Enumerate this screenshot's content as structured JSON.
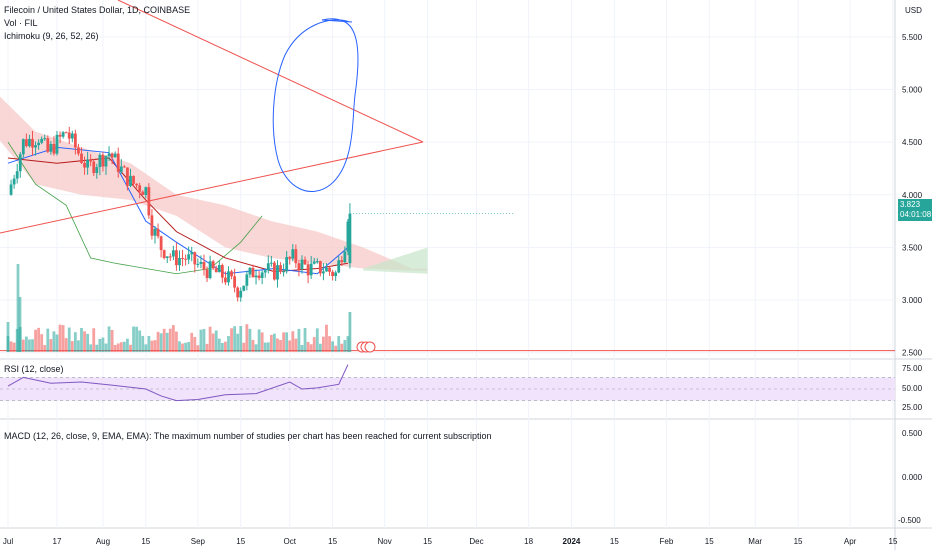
{
  "header": {
    "symbol_line": "Filecoin / United States Dollar, 1D, COINBASE",
    "volume_line": "Vol · FIL",
    "ichimoku_line": "Ichimoku (9, 26, 52, 26)",
    "currency": "USD"
  },
  "last_price": {
    "value": "3.823",
    "countdown": "04:01:08"
  },
  "rsi_panel": {
    "title": "RSI (12, close)",
    "ticks": [
      "75.00",
      "50.00",
      "25.00"
    ]
  },
  "macd_panel": {
    "title": "MACD (12, 26, close, 9, EMA, EMA): The maximum number of studies per chart has been reached for current subscription",
    "ticks": [
      "0.500",
      "0.000",
      "-0.500"
    ]
  },
  "colors": {
    "up": "#26a69a",
    "down": "#ef5350",
    "cloud_bear": "#f7c6c6",
    "cloud_bull": "#c8e6c9",
    "rsi_band": "#f1e3fb",
    "rsi_line": "#7e57c2",
    "trend_line": "#ef5350",
    "drawing": "#2962ff",
    "base_line": "#b71c1c",
    "conversion_line": "#2962ff",
    "lagging_span": "#43a047"
  },
  "chart_data": [
    {
      "type": "candlestick",
      "title": "Filecoin / United States Dollar, 1D, COINBASE",
      "y_axis_ticks": [
        5.5,
        5.0,
        4.5,
        4.0,
        3.5,
        3.0,
        2.5
      ],
      "y_axis_labels": [
        "5.500",
        "5.000",
        "4.500",
        "4.000",
        "3.500",
        "3.000",
        "2.500"
      ],
      "ylim": [
        2.45,
        5.85
      ],
      "x_axis_labels": [
        "Jul",
        "17",
        "Aug",
        "15",
        "Sep",
        "15",
        "Oct",
        "15",
        "Nov",
        "15",
        "Dec",
        "18",
        "2024",
        "15",
        "Feb",
        "15",
        "Mar",
        "15",
        "Apr",
        "15"
      ],
      "x_axis_dates": [
        "2023-07-01",
        "2023-07-17",
        "2023-08-01",
        "2023-08-15",
        "2023-09-01",
        "2023-09-15",
        "2023-10-01",
        "2023-10-15",
        "2023-11-01",
        "2023-11-15",
        "2023-12-01",
        "2023-12-18",
        "2024-01-01",
        "2024-01-15",
        "2024-02-01",
        "2024-02-15",
        "2024-03-01",
        "2024-03-15",
        "2024-04-01",
        "2024-04-15"
      ],
      "series": [
        {
          "kind": "close",
          "x": [
            "2023-07-01",
            "2023-07-06",
            "2023-07-11",
            "2023-07-14",
            "2023-07-20",
            "2023-07-27",
            "2023-08-03",
            "2023-08-10",
            "2023-08-15",
            "2023-08-17",
            "2023-08-20",
            "2023-08-24",
            "2023-08-28",
            "2023-09-03",
            "2023-09-08",
            "2023-09-11",
            "2023-09-14",
            "2023-09-20",
            "2023-09-26",
            "2023-10-02",
            "2023-10-07",
            "2023-10-12",
            "2023-10-16",
            "2023-10-19",
            "2023-10-20"
          ],
          "values": [
            4.0,
            4.5,
            4.55,
            4.4,
            4.6,
            4.25,
            4.4,
            4.12,
            4.05,
            3.7,
            3.5,
            3.4,
            3.4,
            3.3,
            3.25,
            3.2,
            3.1,
            3.3,
            3.27,
            3.4,
            3.3,
            3.3,
            3.25,
            3.55,
            3.82
          ]
        },
        {
          "kind": "ichimoku-base-line",
          "x": [
            "2023-07-01",
            "2023-07-17",
            "2023-08-03",
            "2023-08-15",
            "2023-08-25",
            "2023-09-10",
            "2023-09-26",
            "2023-10-10",
            "2023-10-20"
          ],
          "values": [
            4.35,
            4.3,
            4.35,
            3.95,
            3.65,
            3.4,
            3.27,
            3.3,
            3.35
          ]
        },
        {
          "kind": "ichimoku-conversion-line",
          "x": [
            "2023-07-01",
            "2023-07-17",
            "2023-08-03",
            "2023-08-15",
            "2023-08-25",
            "2023-09-10",
            "2023-09-26",
            "2023-10-10",
            "2023-10-20"
          ],
          "values": [
            4.3,
            4.45,
            4.4,
            3.75,
            3.55,
            3.25,
            3.3,
            3.25,
            3.5
          ]
        },
        {
          "kind": "ichimoku-lagging-span",
          "x": [
            "2023-07-01",
            "2023-07-10",
            "2023-07-20",
            "2023-07-28",
            "2023-08-05",
            "2023-08-15",
            "2023-08-25",
            "2023-09-05",
            "2023-09-15",
            "2023-09-22"
          ],
          "values": [
            4.5,
            4.1,
            3.9,
            3.4,
            3.35,
            3.3,
            3.25,
            3.3,
            3.55,
            3.8
          ]
        },
        {
          "kind": "ichimoku-cloud",
          "x": [
            "2023-06-26",
            "2023-07-10",
            "2023-07-25",
            "2023-08-10",
            "2023-08-25",
            "2023-09-10",
            "2023-09-25",
            "2023-10-10",
            "2023-10-25",
            "2023-11-10",
            "2023-11-15"
          ],
          "span_a": [
            5.0,
            4.6,
            4.45,
            4.3,
            4.0,
            3.9,
            3.75,
            3.65,
            3.5,
            3.3,
            3.3
          ],
          "span_b": [
            4.6,
            4.1,
            4.0,
            3.95,
            3.8,
            3.5,
            3.4,
            3.35,
            3.3,
            3.28,
            3.28
          ]
        }
      ],
      "horizontal_lines": [
        {
          "value": 2.52,
          "color": "#ef5350"
        }
      ],
      "last_price_line": 3.823
    },
    {
      "type": "bar",
      "title": "Vol · FIL",
      "description": "Daily volume histogram, colored by candle direction; spike on the last day",
      "x": [
        "2023-07-01",
        "2023-07-10",
        "2023-07-20",
        "2023-08-01",
        "2023-08-15",
        "2023-09-01",
        "2023-09-15",
        "2023-10-01",
        "2023-10-15",
        "2023-10-20"
      ],
      "values": [
        0.8,
        1.0,
        0.6,
        0.7,
        0.8,
        0.6,
        0.7,
        0.6,
        0.5,
        1.0
      ]
    },
    {
      "type": "line",
      "title": "RSI (12, close)",
      "ylim": [
        0,
        100
      ],
      "y_axis_labels": [
        "75.00",
        "50.00",
        "25.00"
      ],
      "band": [
        30,
        70
      ],
      "x": [
        "2023-07-01",
        "2023-07-06",
        "2023-07-15",
        "2023-07-25",
        "2023-08-05",
        "2023-08-15",
        "2023-08-20",
        "2023-08-25",
        "2023-09-01",
        "2023-09-10",
        "2023-09-20",
        "2023-10-01",
        "2023-10-05",
        "2023-10-10",
        "2023-10-17",
        "2023-10-20"
      ],
      "values": [
        55,
        70,
        60,
        62,
        56,
        50,
        38,
        30,
        32,
        40,
        42,
        62,
        50,
        52,
        58,
        92
      ]
    }
  ]
}
